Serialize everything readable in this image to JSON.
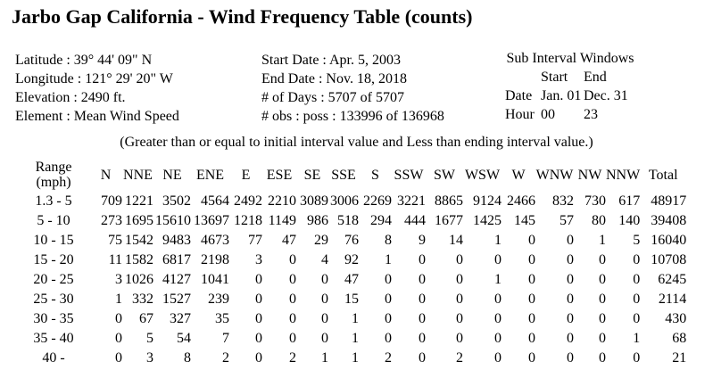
{
  "page": {
    "title": "Jarbo Gap California - Wind Frequency Table (counts)",
    "note": "(Greater than or equal to initial interval value and Less than ending interval value.)"
  },
  "station_info": [
    "Latitude : 39° 44' 09\" N",
    "Longitude : 121° 29' 20\" W",
    "Elevation : 2490 ft.",
    "Element : Mean Wind Speed"
  ],
  "period_info": [
    "Start Date : Apr. 5, 2003",
    "End Date : Nov. 18, 2018",
    "# of Days : 5707 of 5707",
    "# obs : poss : 133996 of 136968"
  ],
  "sub_interval": {
    "title": "Sub Interval Windows",
    "start_header": "Start",
    "end_header": "End",
    "rows": [
      {
        "label": "Date",
        "start": "Jan. 01",
        "end": "Dec. 31"
      },
      {
        "label": "Hour",
        "start": "00",
        "end": "23"
      }
    ]
  },
  "chart_data": {
    "type": "table",
    "title": "Jarbo Gap California - Wind Frequency Table (counts)",
    "range_header": [
      "Range",
      "(mph)"
    ],
    "columns": [
      "N",
      "NNE",
      "NE",
      "ENE",
      "E",
      "ESE",
      "SE",
      "SSE",
      "S",
      "SSW",
      "SW",
      "WSW",
      "W",
      "WNW",
      "NW",
      "NNW",
      "Total"
    ],
    "rows": [
      {
        "range": "1.3 - 5",
        "values": [
          709,
          1221,
          3502,
          4564,
          2492,
          2210,
          3089,
          3006,
          2269,
          3221,
          8865,
          9124,
          2466,
          832,
          730,
          617,
          48917
        ]
      },
      {
        "range": "5 - 10",
        "values": [
          273,
          1695,
          15610,
          13697,
          1218,
          1149,
          986,
          518,
          294,
          444,
          1677,
          1425,
          145,
          57,
          80,
          140,
          39408
        ]
      },
      {
        "range": "10 - 15",
        "values": [
          75,
          1542,
          9483,
          4673,
          77,
          47,
          29,
          76,
          8,
          9,
          14,
          1,
          0,
          0,
          1,
          5,
          16040
        ]
      },
      {
        "range": "15 - 20",
        "values": [
          11,
          1582,
          6817,
          2198,
          3,
          0,
          4,
          92,
          1,
          0,
          0,
          0,
          0,
          0,
          0,
          0,
          10708
        ]
      },
      {
        "range": "20 - 25",
        "values": [
          3,
          1026,
          4127,
          1041,
          0,
          0,
          0,
          47,
          0,
          0,
          0,
          1,
          0,
          0,
          0,
          0,
          6245
        ]
      },
      {
        "range": "25 - 30",
        "values": [
          1,
          332,
          1527,
          239,
          0,
          0,
          0,
          15,
          0,
          0,
          0,
          0,
          0,
          0,
          0,
          0,
          2114
        ]
      },
      {
        "range": "30 - 35",
        "values": [
          0,
          67,
          327,
          35,
          0,
          0,
          0,
          1,
          0,
          0,
          0,
          0,
          0,
          0,
          0,
          0,
          430
        ]
      },
      {
        "range": "35 - 40",
        "values": [
          0,
          5,
          54,
          7,
          0,
          0,
          0,
          1,
          0,
          0,
          0,
          0,
          0,
          0,
          0,
          1,
          68
        ]
      },
      {
        "range": "40 -",
        "values": [
          0,
          3,
          8,
          2,
          0,
          2,
          1,
          1,
          2,
          0,
          2,
          0,
          0,
          0,
          0,
          0,
          21
        ]
      }
    ]
  }
}
